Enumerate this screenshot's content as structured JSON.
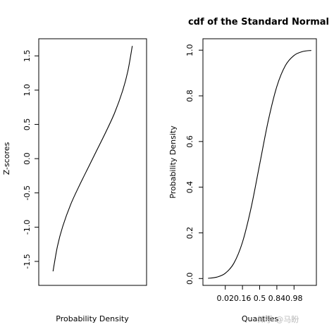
{
  "watermark": "知乎 @马盼",
  "chart_data": [
    {
      "type": "line",
      "title": "",
      "xlabel": "Probability Density",
      "ylabel": "Z-scores",
      "ylim": [
        -1.85,
        1.75
      ],
      "yticks": [
        {
          "value": -1.5,
          "label": "-1.5"
        },
        {
          "value": -1.0,
          "label": "-1.0"
        },
        {
          "value": -0.5,
          "label": "-0.5"
        },
        {
          "value": 0.0,
          "label": "0.0"
        },
        {
          "value": 0.5,
          "label": "0.5"
        },
        {
          "value": 1.0,
          "label": "1.0"
        },
        {
          "value": 1.5,
          "label": "1.5"
        }
      ],
      "xticks": [],
      "x": [
        0.05,
        0.1,
        0.16,
        0.25,
        0.35,
        0.45,
        0.5,
        0.55,
        0.65,
        0.75,
        0.84,
        0.9,
        0.95
      ],
      "y": [
        -1.645,
        -1.28,
        -0.99,
        -0.67,
        -0.39,
        -0.13,
        0.0,
        0.13,
        0.39,
        0.67,
        0.99,
        1.28,
        1.645
      ],
      "grid": false
    },
    {
      "type": "line",
      "title": "cdf of the Standard Normal",
      "xlabel": "Quantiles",
      "ylabel": "Probability Density",
      "xlim": [
        -3.3,
        3.3
      ],
      "ylim": [
        -0.03,
        1.05
      ],
      "yticks": [
        {
          "value": 0.0,
          "label": "0.0"
        },
        {
          "value": 0.2,
          "label": "0.2"
        },
        {
          "value": 0.4,
          "label": "0.4"
        },
        {
          "value": 0.6,
          "label": "0.6"
        },
        {
          "value": 0.8,
          "label": "0.8"
        },
        {
          "value": 1.0,
          "label": "1.0"
        }
      ],
      "xticks": [
        {
          "value": -2.0,
          "label": "0.02"
        },
        {
          "value": -1.0,
          "label": "0.16"
        },
        {
          "value": 0.0,
          "label": "0.5"
        },
        {
          "value": 1.0,
          "label": "0.84"
        },
        {
          "value": 2.0,
          "label": "0.98"
        }
      ],
      "x": [
        -3.0,
        -2.5,
        -2.0,
        -1.5,
        -1.0,
        -0.5,
        0.0,
        0.5,
        1.0,
        1.5,
        2.0,
        2.5,
        3.0
      ],
      "y": [
        0.001,
        0.006,
        0.023,
        0.067,
        0.159,
        0.309,
        0.5,
        0.691,
        0.841,
        0.933,
        0.977,
        0.994,
        0.999
      ],
      "grid": false
    }
  ]
}
